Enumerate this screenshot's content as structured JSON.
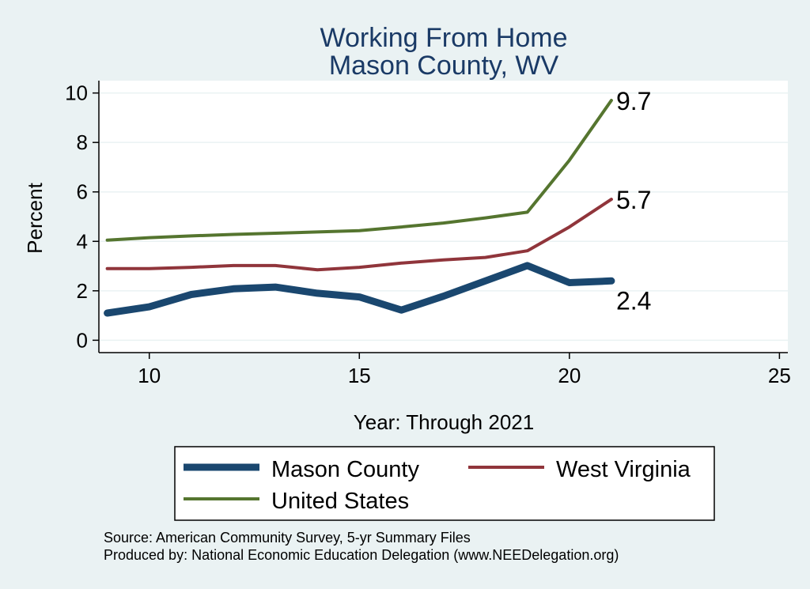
{
  "chart_data": {
    "type": "line",
    "title": [
      "Working From Home",
      "Mason County, WV"
    ],
    "xlabel": "Year: Through 2021",
    "ylabel": "Percent",
    "xlim": [
      8.8,
      25.2
    ],
    "ylim": [
      -0.5,
      10.5
    ],
    "xticks": [
      10,
      15,
      20,
      25
    ],
    "yticks": [
      0,
      2,
      4,
      6,
      8,
      10
    ],
    "grid": "horizontal",
    "x": [
      9,
      10,
      11,
      12,
      13,
      14,
      15,
      16,
      17,
      18,
      19,
      20,
      21
    ],
    "series": [
      {
        "name": "Mason County",
        "color": "#1a476f",
        "values": [
          1.1,
          1.35,
          1.85,
          2.08,
          2.15,
          1.9,
          1.75,
          1.22,
          1.78,
          2.4,
          3.02,
          2.33,
          2.4
        ],
        "end_label": "2.4"
      },
      {
        "name": "West Virginia",
        "color": "#90353b",
        "values": [
          2.9,
          2.9,
          2.95,
          3.02,
          3.02,
          2.85,
          2.95,
          3.12,
          3.25,
          3.35,
          3.62,
          4.58,
          5.7
        ],
        "end_label": "5.7"
      },
      {
        "name": "United States",
        "color": "#55752f",
        "values": [
          4.05,
          4.15,
          4.22,
          4.28,
          4.33,
          4.38,
          4.43,
          4.58,
          4.74,
          4.95,
          5.18,
          7.28,
          9.7
        ],
        "end_label": "9.7"
      }
    ],
    "legend": "bottom"
  },
  "notes": [
    "Source: American Community Survey, 5-yr Summary Files",
    "Produced by: National Economic Education Delegation (www.NEEDelegation.org)"
  ]
}
